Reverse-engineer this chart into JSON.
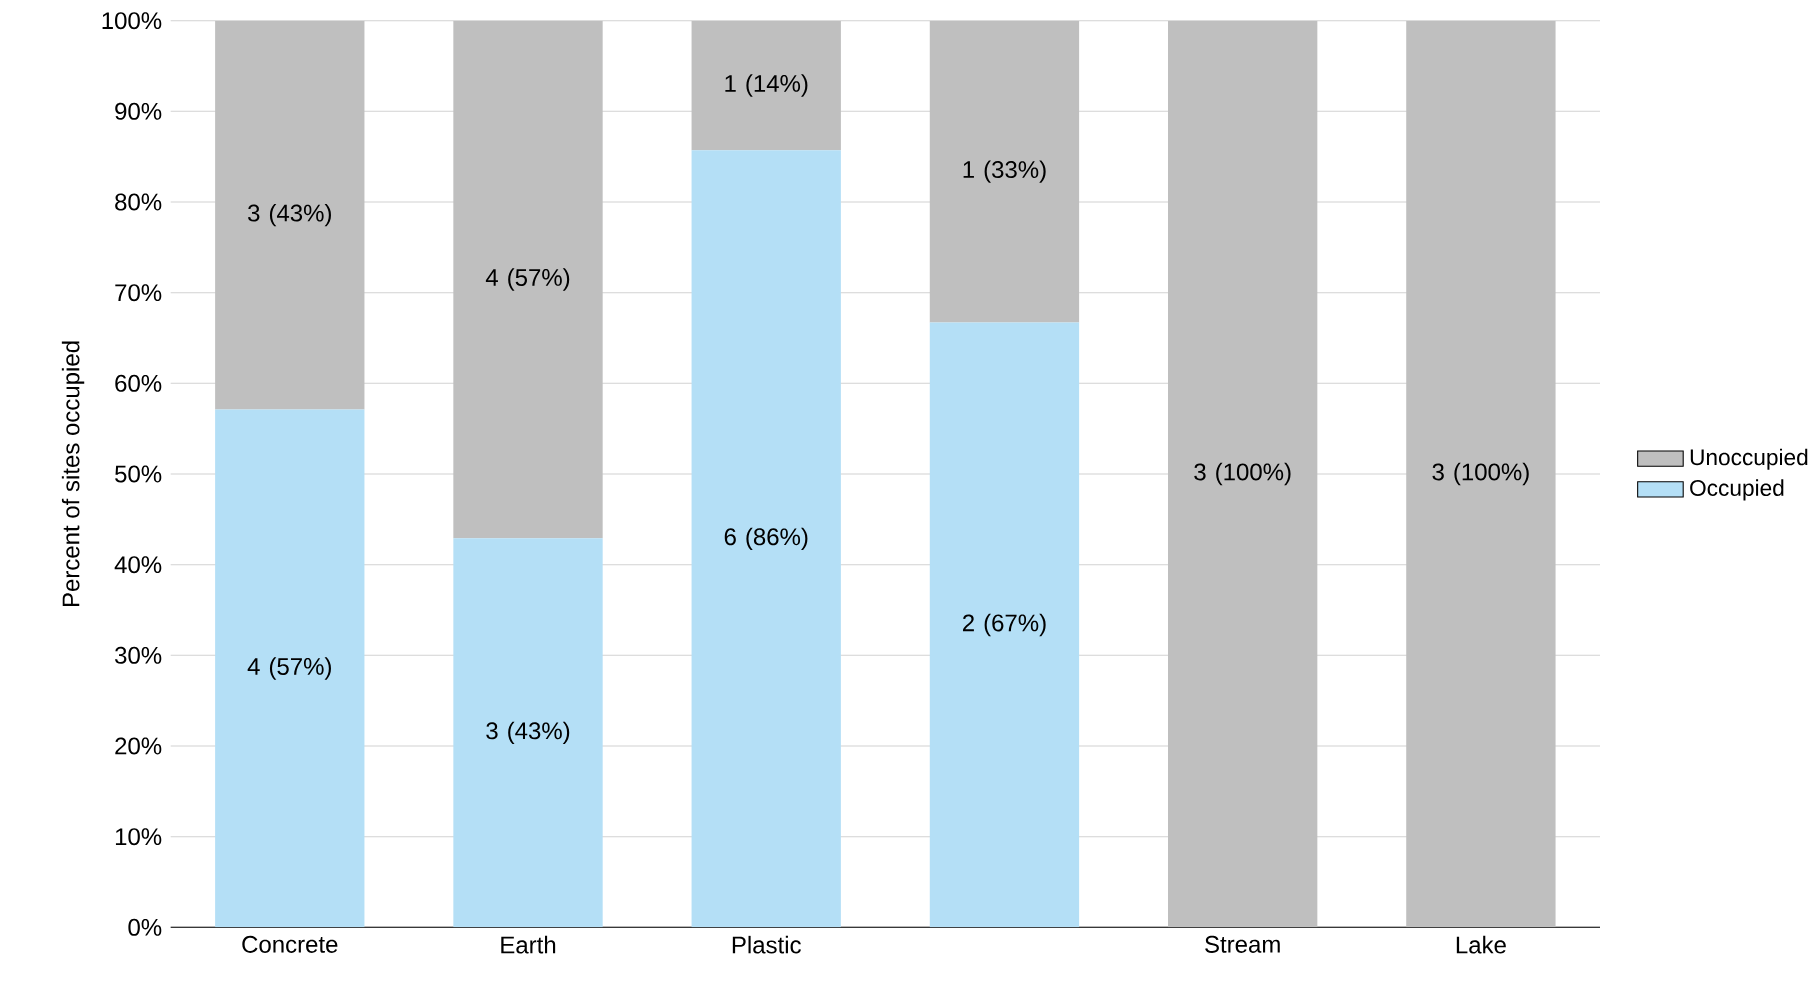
{
  "chart_data": {
    "type": "bar",
    "stacked": true,
    "ylabel": "Percent of sites occupied",
    "categories": [
      "Concrete",
      "Earth",
      "Plastic",
      null,
      "Stream",
      "Lake"
    ],
    "series": [
      {
        "name": "Occupied",
        "color": "#b4dff6",
        "values": [
          57.1,
          42.9,
          85.7,
          66.7,
          0,
          0
        ],
        "value_labels": [
          "4 (57%)",
          "3 (43%)",
          "6 (86%)",
          "2 (67%)",
          null,
          null
        ]
      },
      {
        "name": "Unoccupied",
        "color": "#bfbfbf",
        "values": [
          42.9,
          57.1,
          14.3,
          33.3,
          100,
          100
        ],
        "value_labels": [
          "3 (43%)",
          "4 (57%)",
          "1 (14%)",
          "1 (33%)",
          "3 (100%)",
          "3 (100%)"
        ]
      }
    ],
    "ylim": [
      0,
      100
    ],
    "yticks": [
      {
        "value": 0,
        "label": "0%"
      },
      {
        "value": 10,
        "label": "10%"
      },
      {
        "value": 20,
        "label": "20%"
      },
      {
        "value": 30,
        "label": "30%"
      },
      {
        "value": 40,
        "label": "40%"
      },
      {
        "value": 50,
        "label": "50%"
      },
      {
        "value": 60,
        "label": "60%"
      },
      {
        "value": 70,
        "label": "70%"
      },
      {
        "value": 80,
        "label": "80%"
      },
      {
        "value": 90,
        "label": "90%"
      },
      {
        "value": 100,
        "label": "100%"
      }
    ],
    "grid": "y",
    "legend": "right"
  }
}
